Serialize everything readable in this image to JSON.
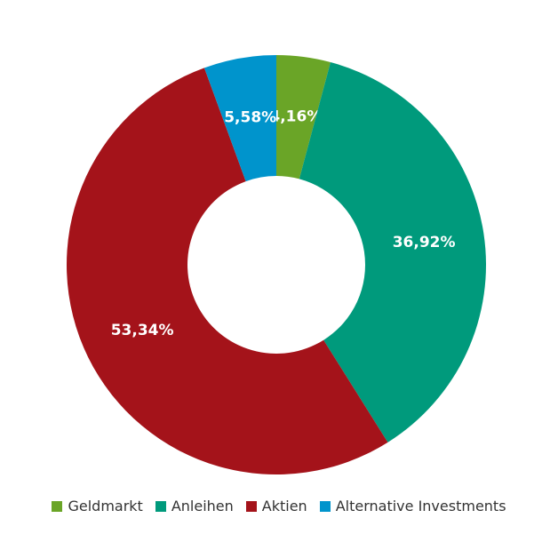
{
  "chart_data": {
    "type": "pie",
    "donut": true,
    "title": "",
    "legend_position": "bottom",
    "categories": [
      "Geldmarkt",
      "Anleihen",
      "Aktien",
      "Alternative Investments"
    ],
    "values": [
      4.16,
      36.92,
      53.34,
      5.58
    ],
    "value_labels": [
      "4,16%",
      "36,92%",
      "53,34%",
      "5,58%"
    ],
    "colors": [
      "#6aa527",
      "#009a7c",
      "#a4131a",
      "#0094cc"
    ]
  }
}
